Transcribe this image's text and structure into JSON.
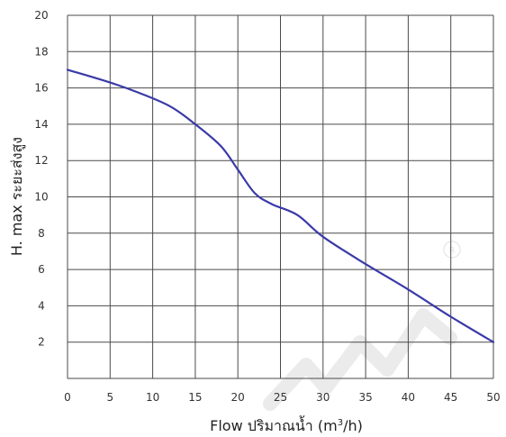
{
  "chart_data": {
    "type": "line",
    "title": "",
    "xlabel_main": "Flow  ปริมาณน้ำ (m",
    "xlabel_sup": "3",
    "xlabel_end": "/h)",
    "ylabel": "H. max  ระยะส่งสูง",
    "xlim": [
      0,
      50
    ],
    "ylim": [
      0,
      20
    ],
    "x_ticks": [
      0,
      5,
      10,
      15,
      20,
      25,
      30,
      35,
      40,
      45,
      50
    ],
    "y_ticks": [
      2,
      4,
      6,
      8,
      10,
      12,
      14,
      16,
      18,
      20
    ],
    "grid": true,
    "series": [
      {
        "x": [
          0,
          5,
          8,
          12,
          15,
          18,
          20,
          22,
          24,
          27,
          30,
          35,
          40,
          45,
          50
        ],
        "y": [
          17.0,
          16.3,
          15.8,
          15.0,
          14.0,
          12.8,
          11.5,
          10.2,
          9.6,
          9.0,
          7.8,
          6.3,
          4.9,
          3.4,
          2.0
        ]
      }
    ],
    "colors": {
      "line": "#3a3aa8",
      "grid": "#4a4a4a",
      "watermark": "#e6e6e6"
    }
  }
}
